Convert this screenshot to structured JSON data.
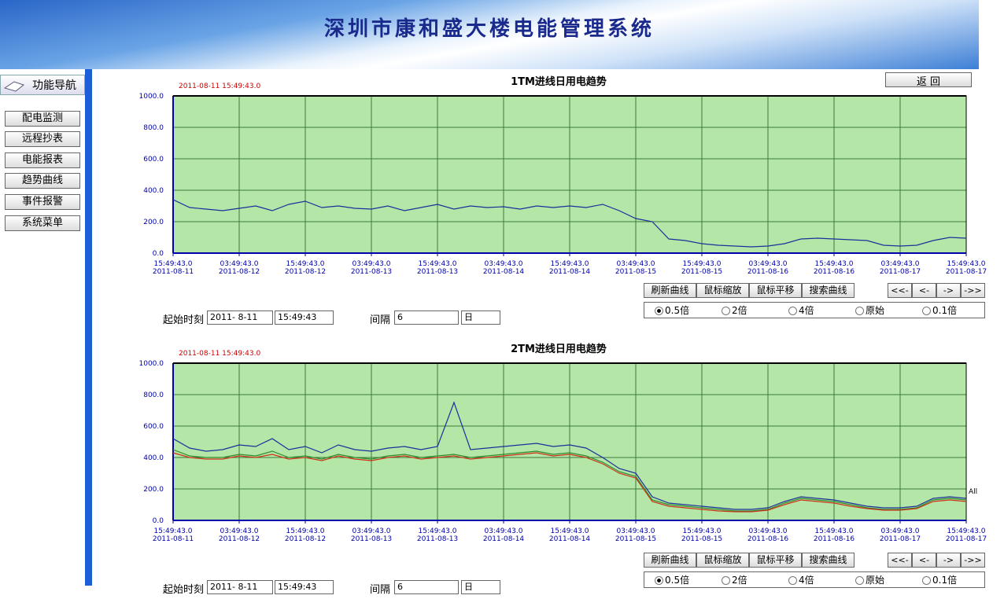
{
  "header": {
    "title": "深圳市康和盛大楼电能管理系统"
  },
  "nav": {
    "title": "功能导航",
    "items": [
      "配电监测",
      "远程抄表",
      "电能报表",
      "趋势曲线",
      "事件报警",
      "系统菜单"
    ]
  },
  "back_button": "返 回",
  "chart_data": [
    {
      "type": "line",
      "title": "1TM进线日用电趋势",
      "annotation": "2011-08-11 15:49:43.0",
      "x": [
        "2011-08-11 15:49:43",
        "2011-08-11 18:49:43",
        "2011-08-11 21:49:43",
        "2011-08-12 00:49:43",
        "2011-08-12 03:49:43",
        "2011-08-12 06:49:43",
        "2011-08-12 09:49:43",
        "2011-08-12 12:49:43",
        "2011-08-12 15:49:43",
        "2011-08-12 18:49:43",
        "2011-08-12 21:49:43",
        "2011-08-13 00:49:43",
        "2011-08-13 03:49:43",
        "2011-08-13 06:49:43",
        "2011-08-13 09:49:43",
        "2011-08-13 12:49:43",
        "2011-08-13 15:49:43",
        "2011-08-13 18:49:43",
        "2011-08-13 21:49:43",
        "2011-08-14 00:49:43",
        "2011-08-14 03:49:43",
        "2011-08-14 06:49:43",
        "2011-08-14 09:49:43",
        "2011-08-14 12:49:43",
        "2011-08-14 15:49:43",
        "2011-08-14 18:49:43",
        "2011-08-14 21:49:43",
        "2011-08-15 00:49:43",
        "2011-08-15 03:49:43",
        "2011-08-15 06:49:43",
        "2011-08-15 09:49:43",
        "2011-08-15 12:49:43",
        "2011-08-15 15:49:43",
        "2011-08-15 18:49:43",
        "2011-08-15 21:49:43",
        "2011-08-16 00:49:43",
        "2011-08-16 03:49:43",
        "2011-08-16 06:49:43",
        "2011-08-16 09:49:43",
        "2011-08-16 12:49:43",
        "2011-08-16 15:49:43",
        "2011-08-16 18:49:43",
        "2011-08-16 21:49:43",
        "2011-08-17 00:49:43",
        "2011-08-17 03:49:43",
        "2011-08-17 06:49:43",
        "2011-08-17 09:49:43",
        "2011-08-17 12:49:43",
        "2011-08-17 15:49:43"
      ],
      "series": [
        {
          "color": "#1c2f9a",
          "values": [
            340,
            290,
            280,
            270,
            285,
            300,
            270,
            310,
            330,
            290,
            300,
            285,
            280,
            300,
            270,
            290,
            310,
            280,
            300,
            290,
            295,
            280,
            300,
            290,
            300,
            290,
            310,
            270,
            220,
            200,
            90,
            80,
            60,
            50,
            45,
            40,
            45,
            60,
            90,
            95,
            90,
            85,
            80,
            50,
            45,
            50,
            80,
            100,
            95
          ]
        }
      ],
      "xlim": [
        "2011-08-11 15:49:43",
        "2011-08-17 15:49:43"
      ],
      "xticks": [
        {
          "value": "2011-08-11 15:49:43",
          "label": [
            "15:49:43.0",
            "2011-08-11"
          ]
        },
        {
          "value": "2011-08-12 03:49:43",
          "label": [
            "03:49:43.0",
            "2011-08-12"
          ]
        },
        {
          "value": "2011-08-12 15:49:43",
          "label": [
            "15:49:43.0",
            "2011-08-12"
          ]
        },
        {
          "value": "2011-08-13 03:49:43",
          "label": [
            "03:49:43.0",
            "2011-08-13"
          ]
        },
        {
          "value": "2011-08-13 15:49:43",
          "label": [
            "15:49:43.0",
            "2011-08-13"
          ]
        },
        {
          "value": "2011-08-14 03:49:43",
          "label": [
            "03:49:43.0",
            "2011-08-14"
          ]
        },
        {
          "value": "2011-08-14 15:49:43",
          "label": [
            "15:49:43.0",
            "2011-08-14"
          ]
        },
        {
          "value": "2011-08-15 03:49:43",
          "label": [
            "03:49:43.0",
            "2011-08-15"
          ]
        },
        {
          "value": "2011-08-15 15:49:43",
          "label": [
            "15:49:43.0",
            "2011-08-15"
          ]
        },
        {
          "value": "2011-08-16 03:49:43",
          "label": [
            "03:49:43.0",
            "2011-08-16"
          ]
        },
        {
          "value": "2011-08-16 15:49:43",
          "label": [
            "15:49:43.0",
            "2011-08-16"
          ]
        },
        {
          "value": "2011-08-17 03:49:43",
          "label": [
            "03:49:43.0",
            "2011-08-17"
          ]
        },
        {
          "value": "2011-08-17 15:49:43",
          "label": [
            "15:49:43.0",
            "2011-08-17"
          ]
        }
      ],
      "ylim": [
        0,
        1000
      ],
      "yticks": [
        {
          "value": 0,
          "label": "0.0"
        },
        {
          "value": 200,
          "label": "200.0"
        },
        {
          "value": 400,
          "label": "400.0"
        },
        {
          "value": 600,
          "label": "600.0"
        },
        {
          "value": 800,
          "label": "800.0"
        },
        {
          "value": 1000,
          "label": "1000.0"
        }
      ],
      "grid": true
    },
    {
      "type": "line",
      "title": "2TM进线日用电趋势",
      "annotation": "2011-08-11 15:49:43.0",
      "end_label": "All",
      "x": [
        "2011-08-11 15:49:43",
        "2011-08-11 18:49:43",
        "2011-08-11 21:49:43",
        "2011-08-12 00:49:43",
        "2011-08-12 03:49:43",
        "2011-08-12 06:49:43",
        "2011-08-12 09:49:43",
        "2011-08-12 12:49:43",
        "2011-08-12 15:49:43",
        "2011-08-12 18:49:43",
        "2011-08-12 21:49:43",
        "2011-08-13 00:49:43",
        "2011-08-13 03:49:43",
        "2011-08-13 06:49:43",
        "2011-08-13 09:49:43",
        "2011-08-13 12:49:43",
        "2011-08-13 15:49:43",
        "2011-08-13 18:49:43",
        "2011-08-13 21:49:43",
        "2011-08-14 00:49:43",
        "2011-08-14 03:49:43",
        "2011-08-14 06:49:43",
        "2011-08-14 09:49:43",
        "2011-08-14 12:49:43",
        "2011-08-14 15:49:43",
        "2011-08-14 18:49:43",
        "2011-08-14 21:49:43",
        "2011-08-15 00:49:43",
        "2011-08-15 03:49:43",
        "2011-08-15 06:49:43",
        "2011-08-15 09:49:43",
        "2011-08-15 12:49:43",
        "2011-08-15 15:49:43",
        "2011-08-15 18:49:43",
        "2011-08-15 21:49:43",
        "2011-08-16 00:49:43",
        "2011-08-16 03:49:43",
        "2011-08-16 06:49:43",
        "2011-08-16 09:49:43",
        "2011-08-16 12:49:43",
        "2011-08-16 15:49:43",
        "2011-08-16 18:49:43",
        "2011-08-16 21:49:43",
        "2011-08-17 00:49:43",
        "2011-08-17 03:49:43",
        "2011-08-17 06:49:43",
        "2011-08-17 09:49:43",
        "2011-08-17 12:49:43",
        "2011-08-17 15:49:43"
      ],
      "series": [
        {
          "color": "#1c2f9a",
          "values": [
            520,
            460,
            440,
            450,
            480,
            470,
            520,
            450,
            470,
            430,
            480,
            450,
            440,
            460,
            470,
            450,
            470,
            750,
            450,
            460,
            470,
            480,
            490,
            470,
            480,
            460,
            400,
            330,
            300,
            150,
            110,
            100,
            90,
            80,
            70,
            70,
            80,
            120,
            150,
            140,
            130,
            110,
            90,
            80,
            80,
            90,
            140,
            150,
            140
          ]
        },
        {
          "color": "#2e8b2e",
          "values": [
            450,
            410,
            400,
            400,
            420,
            410,
            440,
            400,
            410,
            390,
            420,
            400,
            390,
            410,
            420,
            400,
            410,
            420,
            400,
            410,
            420,
            430,
            440,
            420,
            430,
            410,
            370,
            310,
            280,
            130,
            100,
            90,
            80,
            70,
            60,
            60,
            70,
            110,
            140,
            130,
            120,
            100,
            80,
            70,
            70,
            80,
            130,
            140,
            130
          ]
        },
        {
          "color": "#d03018",
          "values": [
            430,
            400,
            390,
            390,
            410,
            400,
            420,
            390,
            400,
            380,
            410,
            390,
            380,
            400,
            410,
            390,
            400,
            410,
            390,
            400,
            410,
            420,
            430,
            410,
            420,
            400,
            360,
            300,
            270,
            120,
            90,
            80,
            70,
            60,
            55,
            55,
            65,
            100,
            130,
            120,
            110,
            90,
            75,
            65,
            65,
            75,
            120,
            130,
            120
          ]
        }
      ],
      "xlim": [
        "2011-08-11 15:49:43",
        "2011-08-17 15:49:43"
      ],
      "xticks": [
        {
          "value": "2011-08-11 15:49:43",
          "label": [
            "15:49:43.0",
            "2011-08-11"
          ]
        },
        {
          "value": "2011-08-12 03:49:43",
          "label": [
            "03:49:43.0",
            "2011-08-12"
          ]
        },
        {
          "value": "2011-08-12 15:49:43",
          "label": [
            "15:49:43.0",
            "2011-08-12"
          ]
        },
        {
          "value": "2011-08-13 03:49:43",
          "label": [
            "03:49:43.0",
            "2011-08-13"
          ]
        },
        {
          "value": "2011-08-13 15:49:43",
          "label": [
            "15:49:43.0",
            "2011-08-13"
          ]
        },
        {
          "value": "2011-08-14 03:49:43",
          "label": [
            "03:49:43.0",
            "2011-08-14"
          ]
        },
        {
          "value": "2011-08-14 15:49:43",
          "label": [
            "15:49:43.0",
            "2011-08-14"
          ]
        },
        {
          "value": "2011-08-15 03:49:43",
          "label": [
            "03:49:43.0",
            "2011-08-15"
          ]
        },
        {
          "value": "2011-08-15 15:49:43",
          "label": [
            "15:49:43.0",
            "2011-08-15"
          ]
        },
        {
          "value": "2011-08-16 03:49:43",
          "label": [
            "03:49:43.0",
            "2011-08-16"
          ]
        },
        {
          "value": "2011-08-16 15:49:43",
          "label": [
            "15:49:43.0",
            "2011-08-16"
          ]
        },
        {
          "value": "2011-08-17 03:49:43",
          "label": [
            "03:49:43.0",
            "2011-08-17"
          ]
        },
        {
          "value": "2011-08-17 15:49:43",
          "label": [
            "15:49:43.0",
            "2011-08-17"
          ]
        }
      ],
      "ylim": [
        0,
        1000
      ],
      "yticks": [
        {
          "value": 0,
          "label": "0.0"
        },
        {
          "value": 200,
          "label": "200.0"
        },
        {
          "value": 400,
          "label": "400.0"
        },
        {
          "value": 600,
          "label": "600.0"
        },
        {
          "value": 800,
          "label": "800.0"
        },
        {
          "value": 1000,
          "label": "1000.0"
        }
      ],
      "grid": true
    }
  ],
  "controls": [
    {
      "buttons": [
        "刷新曲线",
        "鼠标缩放",
        "鼠标平移",
        "搜索曲线"
      ],
      "nav_buttons": [
        "<<-",
        "<-",
        "->",
        "->>"
      ],
      "zoom_options": [
        "0.5倍",
        "2倍",
        "4倍",
        "原始",
        "0.1倍"
      ],
      "selected": 0,
      "start_label": "起始时刻",
      "start_date": "2011- 8-11",
      "start_time": "15:49:43",
      "interval_label": "间隔",
      "interval": "6",
      "interval_unit": "日"
    },
    {
      "buttons": [
        "刷新曲线",
        "鼠标缩放",
        "鼠标平移",
        "搜索曲线"
      ],
      "nav_buttons": [
        "<<-",
        "<-",
        "->",
        "->>"
      ],
      "zoom_options": [
        "0.5倍",
        "2倍",
        "4倍",
        "原始",
        "0.1倍"
      ],
      "selected": 0,
      "start_label": "起始时刻",
      "start_date": "2011- 8-11",
      "start_time": "15:49:43",
      "interval_label": "间隔",
      "interval": "6",
      "interval_unit": "日"
    }
  ]
}
